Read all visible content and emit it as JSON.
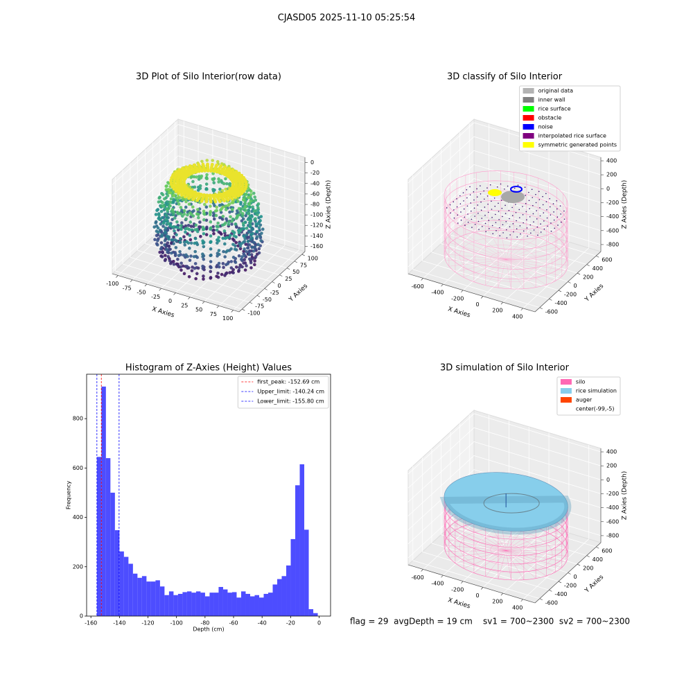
{
  "title": "CJASD05 2025-11-10 05:25:54",
  "footer": "flag = 29  avgDepth = 19 cm    sv1 = 700~2300  sv2 = 700~2300",
  "chart_data": [
    {
      "type": "scatter3d",
      "title": "3D Plot of Silo Interior(row data)",
      "xlabel": "X Axies",
      "ylabel": "Y Axies",
      "zlabel": "Z Axies (Depth)",
      "xlim": [
        -110,
        110
      ],
      "xticks": [
        -100,
        -75,
        -50,
        -25,
        0,
        25,
        50,
        75,
        100
      ],
      "ylim": [
        -110,
        110
      ],
      "yticks": [
        -100,
        -75,
        -50,
        -25,
        0,
        25,
        50,
        75,
        100
      ],
      "zlim": [
        -170,
        10
      ],
      "zticks": [
        -160,
        -140,
        -120,
        -100,
        -80,
        -60,
        -40,
        -20,
        0
      ]
    },
    {
      "type": "scatter3d",
      "title": "3D classify of Silo Interior",
      "xlabel": "X Axies",
      "ylabel": "Y Axies",
      "zlabel": "Z Axies (Depth)",
      "xlim": [
        -750,
        520
      ],
      "xticks": [
        -600,
        -400,
        -200,
        0,
        200,
        400
      ],
      "ylim": [
        -700,
        700
      ],
      "yticks": [
        -600,
        -400,
        -200,
        0,
        200,
        400,
        600
      ],
      "zlim": [
        -900,
        450
      ],
      "zticks": [
        -800,
        -600,
        -400,
        -200,
        0,
        200,
        400
      ],
      "legend": [
        {
          "name": "original data",
          "color": "#b3b3b3"
        },
        {
          "name": "inner wall",
          "color": "#808080"
        },
        {
          "name": "rice surface",
          "color": "#00ff00"
        },
        {
          "name": "obstacle",
          "color": "#ff0000"
        },
        {
          "name": "noise",
          "color": "#0000ff"
        },
        {
          "name": "interpolated rice surface",
          "color": "#800080"
        },
        {
          "name": "symmetric generated points",
          "color": "#ffff00"
        }
      ]
    },
    {
      "type": "histogram",
      "title": "Histogram of Z-Axies (Height) Values",
      "xlabel": "Depth (cm)",
      "ylabel": "Frequency",
      "color": "#4d4dff",
      "bins": [
        -155.8,
        -152.64,
        -149.48,
        -146.32,
        -143.16,
        -140.0,
        -136.84,
        -133.68,
        -130.52,
        -127.36,
        -124.2,
        -121.04,
        -117.88,
        -114.72,
        -111.56,
        -108.4,
        -105.24,
        -102.08,
        -98.92,
        -95.76,
        -92.6,
        -89.44,
        -86.28,
        -83.12,
        -79.96,
        -76.8,
        -73.64,
        -70.48,
        -67.32,
        -64.16,
        -61.0,
        -57.84,
        -54.68,
        -51.52,
        -48.36,
        -45.2,
        -42.04,
        -38.88,
        -35.72,
        -32.56,
        -29.4,
        -26.24,
        -23.08,
        -19.92,
        -16.76,
        -13.6,
        -10.44,
        -7.28,
        -4.12,
        -0.96
      ],
      "values": [
        645,
        930,
        640,
        500,
        348,
        262,
        240,
        212,
        172,
        155,
        162,
        140,
        140,
        145,
        120,
        85,
        100,
        85,
        90,
        97,
        100,
        95,
        100,
        95,
        80,
        95,
        95,
        118,
        108,
        95,
        97,
        75,
        100,
        90,
        80,
        85,
        75,
        90,
        95,
        128,
        150,
        162,
        205,
        312,
        530,
        615,
        350,
        28,
        12
      ],
      "xlim": [
        -163,
        8
      ],
      "xticks": [
        -160,
        -140,
        -120,
        -100,
        -80,
        -60,
        -40,
        -20,
        0
      ],
      "ylim": [
        0,
        980
      ],
      "yticks": [
        0,
        200,
        400,
        600,
        800
      ],
      "legend_loc": "upper right",
      "vlines": [
        {
          "label": "first_peak: -152.69 cm",
          "value": -152.69,
          "color": "#ff0000"
        },
        {
          "label": "Upper_limit: -140.24 cm",
          "value": -140.24,
          "color": "#0000ff"
        },
        {
          "label": "Lower_limit: -155.80 cm",
          "value": -155.8,
          "color": "#0000ff"
        }
      ]
    },
    {
      "type": "surface3d",
      "title": "3D simulation of Silo Interior",
      "xlabel": "X Axies",
      "ylabel": "Y Axies",
      "zlabel": "Z Axies (Depth)",
      "xlim": [
        -750,
        520
      ],
      "xticks": [
        -600,
        -400,
        -200,
        0,
        200,
        400
      ],
      "ylim": [
        -700,
        700
      ],
      "yticks": [
        -600,
        -400,
        -200,
        0,
        200,
        400,
        600
      ],
      "zlim": [
        -900,
        450
      ],
      "zticks": [
        -800,
        -600,
        -400,
        -200,
        0,
        200,
        400
      ],
      "legend": [
        {
          "name": "silo",
          "color": "#ff69b4"
        },
        {
          "name": "rice simulation",
          "color": "#87ceeb"
        },
        {
          "name": "auger",
          "color": "#ff4500"
        },
        {
          "name": "center(-99,-5)",
          "color": "#ffffff"
        }
      ]
    }
  ]
}
